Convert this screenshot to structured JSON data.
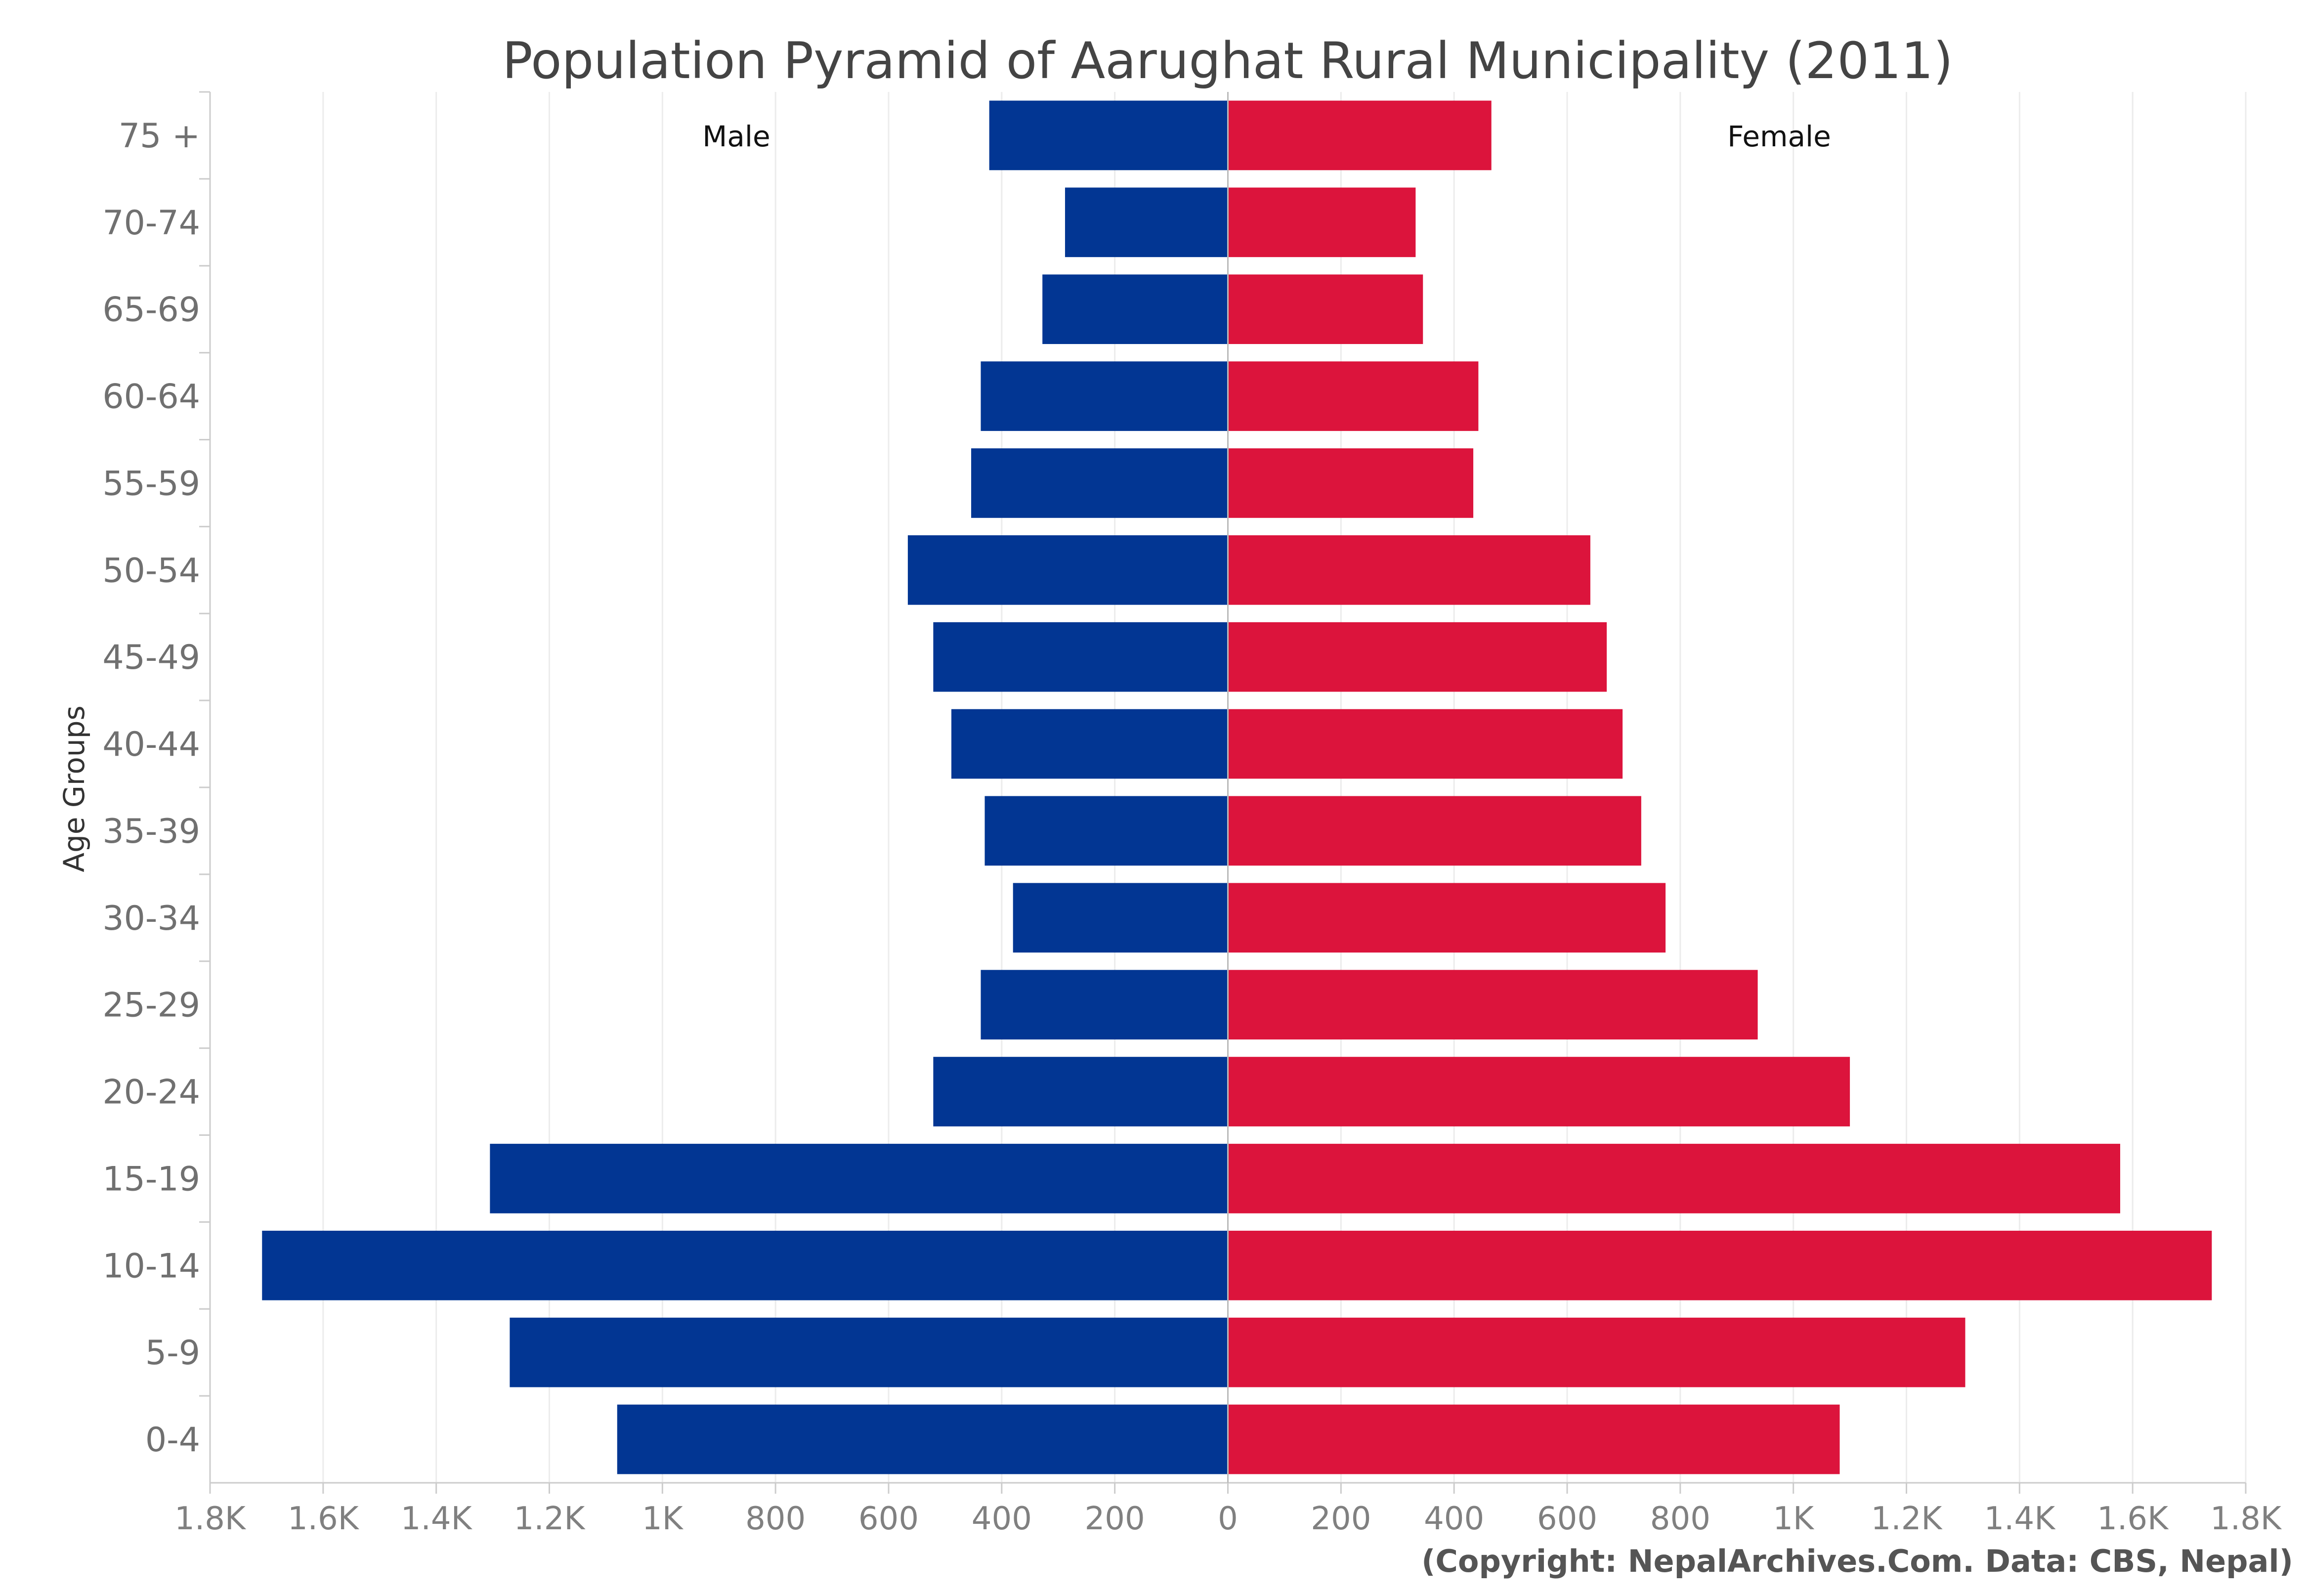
{
  "chart_data": {
    "type": "bar",
    "orientation": "horizontal-pyramid",
    "title": "Population Pyramid of Aarughat Rural Municipality (2011)",
    "ylabel": "Age Groups",
    "categories": [
      "75 +",
      "70-74",
      "65-69",
      "60-64",
      "55-59",
      "50-54",
      "45-49",
      "40-44",
      "35-39",
      "30-34",
      "25-29",
      "20-24",
      "15-19",
      "10-14",
      "5-9",
      "0-4"
    ],
    "series": [
      {
        "name": "Male",
        "color": "#023693",
        "values": [
          422,
          288,
          328,
          437,
          454,
          566,
          521,
          489,
          430,
          380,
          437,
          521,
          1305,
          1708,
          1270,
          1080
        ]
      },
      {
        "name": "Female",
        "color": "#dc143c",
        "values": [
          466,
          332,
          345,
          443,
          434,
          641,
          670,
          698,
          731,
          774,
          937,
          1100,
          1578,
          1740,
          1304,
          1082
        ]
      }
    ],
    "xlim": [
      -1800,
      1800
    ],
    "xticks": [
      {
        "value": -1800,
        "label": "1.8K"
      },
      {
        "value": -1600,
        "label": "1.6K"
      },
      {
        "value": -1400,
        "label": "1.4K"
      },
      {
        "value": -1200,
        "label": "1.2K"
      },
      {
        "value": -1000,
        "label": "1K"
      },
      {
        "value": -800,
        "label": "800"
      },
      {
        "value": -600,
        "label": "600"
      },
      {
        "value": -400,
        "label": "400"
      },
      {
        "value": -200,
        "label": "200"
      },
      {
        "value": 0,
        "label": "0"
      },
      {
        "value": 200,
        "label": "200"
      },
      {
        "value": 400,
        "label": "400"
      },
      {
        "value": 600,
        "label": "600"
      },
      {
        "value": 800,
        "label": "800"
      },
      {
        "value": 1000,
        "label": "1K"
      },
      {
        "value": 1200,
        "label": "1.2K"
      },
      {
        "value": 1400,
        "label": "1.4K"
      },
      {
        "value": 1600,
        "label": "1.6K"
      },
      {
        "value": 1800,
        "label": "1.8K"
      }
    ],
    "grid": true
  },
  "copyright": "(Copyright: NepalArchives.Com. Data: CBS, Nepal)"
}
